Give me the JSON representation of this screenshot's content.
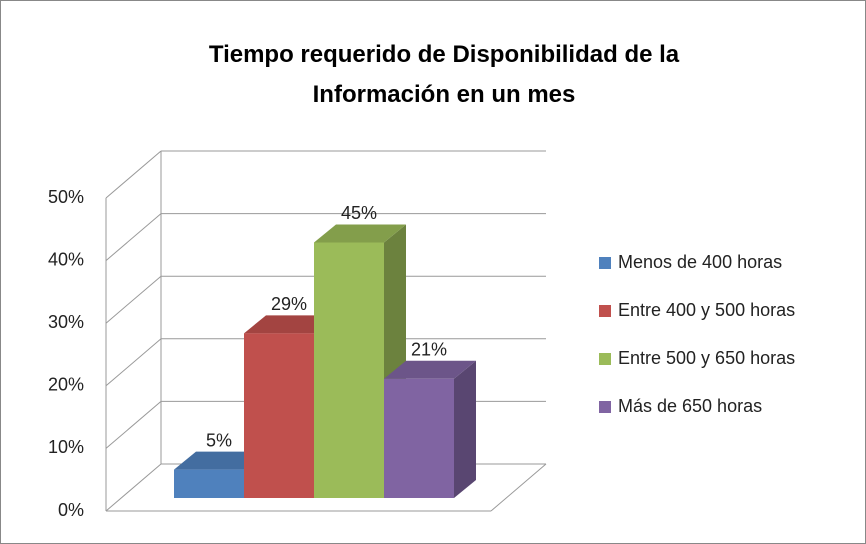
{
  "chart_data": {
    "type": "bar3d",
    "title": "Tiempo requerido de Disponibilidad de la Información en un mes",
    "categories": [
      null
    ],
    "series": [
      {
        "name": "Menos de 400 horas",
        "color": "#4f81bd",
        "values": [
          5
        ],
        "value_labels": [
          "5%"
        ]
      },
      {
        "name": "Entre 400 y 500 horas",
        "color": "#c0504d",
        "values": [
          29
        ],
        "value_labels": [
          "29%"
        ]
      },
      {
        "name": "Entre 500 y 650 horas",
        "color": "#9bbb59",
        "values": [
          45
        ],
        "value_labels": [
          "45%"
        ]
      },
      {
        "name": "Más de 650 horas",
        "color": "#8064a2",
        "values": [
          21
        ],
        "value_labels": [
          "21%"
        ]
      }
    ],
    "ylim": [
      0,
      50
    ],
    "yticks": [
      {
        "value": 0,
        "label": "0%"
      },
      {
        "value": 10,
        "label": "10%"
      },
      {
        "value": 20,
        "label": "20%"
      },
      {
        "value": 30,
        "label": "30%"
      },
      {
        "value": 40,
        "label": "40%"
      },
      {
        "value": 50,
        "label": "50%"
      }
    ],
    "grid": true,
    "legend": "right"
  }
}
